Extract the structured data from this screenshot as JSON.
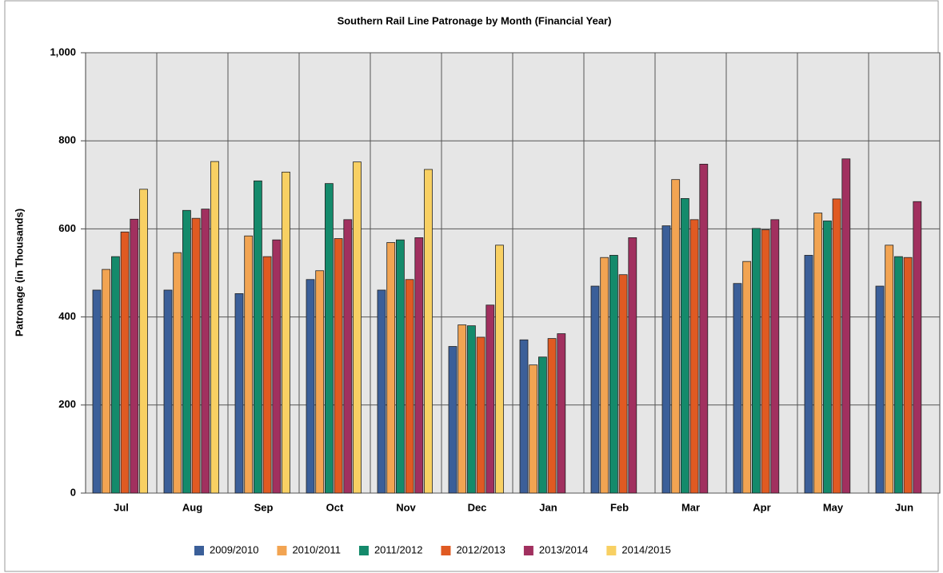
{
  "chart_data": {
    "type": "bar",
    "title": "Southern Rail Line Patronage by Month (Financial Year)",
    "y_label": "Patronage (in Thousands)",
    "categories": [
      "Jul",
      "Aug",
      "Sep",
      "Oct",
      "Nov",
      "Dec",
      "Jan",
      "Feb",
      "Mar",
      "Apr",
      "May",
      "Jun"
    ],
    "series": [
      {
        "name": "2009/2010",
        "color": "#3b5f99",
        "values": [
          461,
          461,
          453,
          485,
          461,
          333,
          348,
          470,
          607,
          476,
          540,
          470
        ]
      },
      {
        "name": "2010/2011",
        "color": "#f2a452",
        "values": [
          508,
          546,
          584,
          505,
          569,
          382,
          291,
          535,
          712,
          526,
          636,
          563
        ]
      },
      {
        "name": "2011/2012",
        "color": "#148a6b",
        "values": [
          537,
          642,
          709,
          703,
          575,
          380,
          309,
          540,
          669,
          601,
          618,
          537
        ]
      },
      {
        "name": "2012/2013",
        "color": "#e05a22",
        "values": [
          593,
          624,
          537,
          578,
          485,
          354,
          351,
          496,
          621,
          598,
          668,
          535
        ]
      },
      {
        "name": "2013/2014",
        "color": "#a1305f",
        "values": [
          622,
          645,
          575,
          621,
          580,
          427,
          362,
          580,
          747,
          621,
          759,
          662
        ]
      },
      {
        "name": "2014/2015",
        "color": "#f8d063",
        "values": [
          690,
          753,
          729,
          752,
          735,
          563,
          null,
          null,
          null,
          null,
          null,
          null
        ]
      }
    ],
    "ylim": [
      0,
      1000
    ],
    "yticks": [
      0,
      200,
      400,
      600,
      800,
      {
        "value": 1000,
        "label": "1,000"
      }
    ],
    "grid": true,
    "legend": "bottom"
  }
}
